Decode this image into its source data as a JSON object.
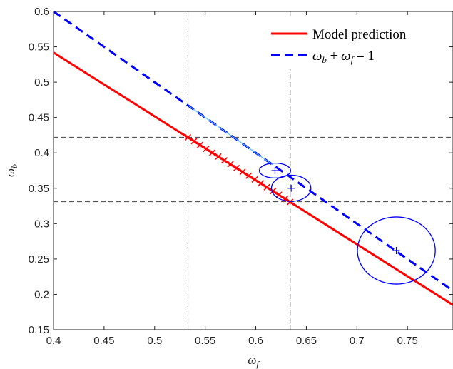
{
  "chart_data": {
    "type": "line",
    "title": "",
    "xlabel": "ω_f",
    "ylabel": "ω_b",
    "xlim": [
      0.4,
      0.795
    ],
    "ylim": [
      0.15,
      0.6
    ],
    "xticks": [
      "0.4",
      "0.45",
      "0.5",
      "0.55",
      "0.6",
      "0.65",
      "0.7",
      "0.75"
    ],
    "yticks": [
      "0.15",
      "0.2",
      "0.25",
      "0.3",
      "0.35",
      "0.4",
      "0.45",
      "0.5",
      "0.55",
      "0.6"
    ],
    "grid": false,
    "legend_position": "top-right",
    "series": [
      {
        "name": "Model prediction",
        "style": "solid",
        "color": "#ff0000",
        "x": [
          0.4,
          0.795
        ],
        "y": [
          0.542,
          0.185
        ]
      },
      {
        "name": "ω_b + ω_f = 1",
        "style": "dashed",
        "color": "#0000ff",
        "x": [
          0.4,
          0.795
        ],
        "y": [
          0.6,
          0.205
        ]
      }
    ],
    "reference_lines": {
      "vertical": [
        0.533,
        0.634
      ],
      "horizontal": [
        0.422,
        0.331
      ],
      "color": "#404040"
    },
    "cross_markers": {
      "color": "#ff0000",
      "x": [
        0.533,
        0.539,
        0.545,
        0.551,
        0.557,
        0.563,
        0.569,
        0.575,
        0.581,
        0.587,
        0.593,
        0.599,
        0.605,
        0.611,
        0.617,
        0.623,
        0.629,
        0.634
      ],
      "y": [
        0.422,
        0.4166,
        0.4112,
        0.4057,
        0.4003,
        0.3949,
        0.3895,
        0.384,
        0.3786,
        0.3732,
        0.3678,
        0.3624,
        0.3569,
        0.3515,
        0.3461,
        0.3407,
        0.3352,
        0.3307
      ]
    },
    "cyan_segment": {
      "color": "#4db8ff",
      "x": [
        0.533,
        0.617
      ],
      "y": [
        0.467,
        0.383
      ]
    },
    "ellipses": [
      {
        "color": "#0000ff",
        "center": [
          0.619,
          0.375
        ],
        "radii": [
          0.0155,
          0.0105
        ]
      },
      {
        "color": "#0000ff",
        "center": [
          0.635,
          0.35
        ],
        "radii": [
          0.0195,
          0.0185
        ]
      },
      {
        "color": "#0000ff",
        "center": [
          0.739,
          0.262
        ],
        "radii": [
          0.0385,
          0.0475
        ]
      }
    ],
    "plus_markers": {
      "color": "#0000ff",
      "x": [
        0.619,
        0.635,
        0.739
      ],
      "y": [
        0.375,
        0.35,
        0.262
      ]
    }
  }
}
